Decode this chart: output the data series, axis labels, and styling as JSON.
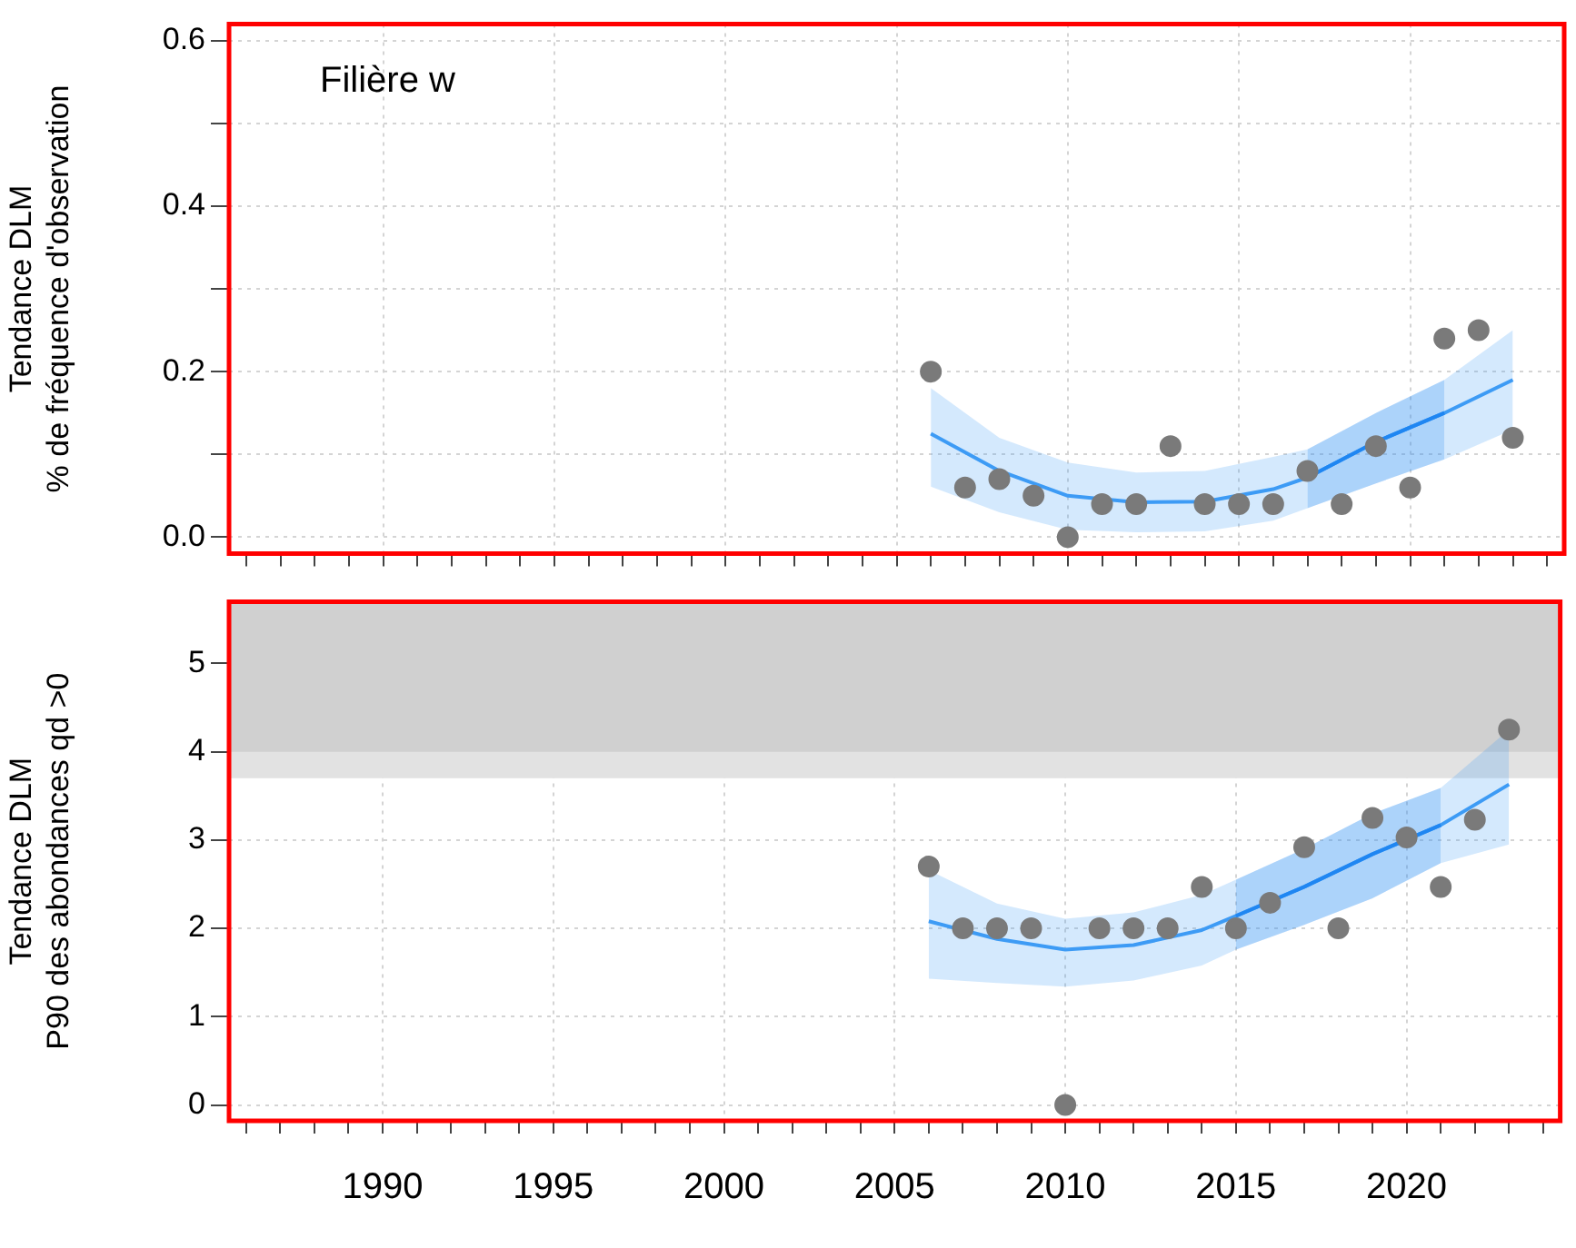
{
  "chart_data": [
    {
      "type": "scatter",
      "ylabel": "Tendance DLM\n% de fréquence d'observation",
      "annotations": [
        "Filière w"
      ],
      "xlim": [
        1985.5,
        2024.5
      ],
      "ylim": [
        -0.02,
        0.62
      ],
      "xticks": [
        {
          "value": 1986,
          "label": null
        },
        {
          "value": 1987,
          "label": null
        },
        {
          "value": 1988,
          "label": null
        },
        {
          "value": 1989,
          "label": null
        },
        {
          "value": 1990,
          "label": null
        },
        {
          "value": 1991,
          "label": null
        },
        {
          "value": 1992,
          "label": null
        },
        {
          "value": 1993,
          "label": null
        },
        {
          "value": 1994,
          "label": null
        },
        {
          "value": 1995,
          "label": null
        },
        {
          "value": 1996,
          "label": null
        },
        {
          "value": 1997,
          "label": null
        },
        {
          "value": 1998,
          "label": null
        },
        {
          "value": 1999,
          "label": null
        },
        {
          "value": 2000,
          "label": null
        },
        {
          "value": 2001,
          "label": null
        },
        {
          "value": 2002,
          "label": null
        },
        {
          "value": 2003,
          "label": null
        },
        {
          "value": 2004,
          "label": null
        },
        {
          "value": 2005,
          "label": null
        },
        {
          "value": 2006,
          "label": null
        },
        {
          "value": 2007,
          "label": null
        },
        {
          "value": 2008,
          "label": null
        },
        {
          "value": 2009,
          "label": null
        },
        {
          "value": 2010,
          "label": null
        },
        {
          "value": 2011,
          "label": null
        },
        {
          "value": 2012,
          "label": null
        },
        {
          "value": 2013,
          "label": null
        },
        {
          "value": 2014,
          "label": null
        },
        {
          "value": 2015,
          "label": null
        },
        {
          "value": 2016,
          "label": null
        },
        {
          "value": 2017,
          "label": null
        },
        {
          "value": 2018,
          "label": null
        },
        {
          "value": 2019,
          "label": null
        },
        {
          "value": 2020,
          "label": null
        },
        {
          "value": 2021,
          "label": null
        },
        {
          "value": 2022,
          "label": null
        },
        {
          "value": 2023,
          "label": null
        },
        {
          "value": 2024,
          "label": null
        }
      ],
      "yticks": [
        {
          "value": 0,
          "label": "0.0"
        },
        {
          "value": 0.1,
          "label": null
        },
        {
          "value": 0.2,
          "label": "0.2"
        },
        {
          "value": 0.3,
          "label": null
        },
        {
          "value": 0.4,
          "label": "0.4"
        },
        {
          "value": 0.5,
          "label": null
        },
        {
          "value": 0.6,
          "label": "0.6"
        }
      ],
      "grid": true,
      "legend": false,
      "tick_labels": "y",
      "series": [
        {
          "type": "line",
          "color": "#3d9bf5",
          "marker": "none",
          "x": [
            2006,
            2008,
            2010,
            2012,
            2014,
            2016,
            2017,
            2019,
            2021,
            2023
          ],
          "values": [
            0.125,
            0.08,
            0.05,
            0.042,
            0.043,
            0.058,
            0.072,
            0.115,
            0.15,
            0.19
          ],
          "lower": [
            0.061,
            0.03,
            0.009,
            0.006,
            0.007,
            0.02,
            0.035,
            0.065,
            0.094,
            0.13
          ],
          "upper": [
            0.18,
            0.12,
            0.09,
            0.078,
            0.08,
            0.097,
            0.106,
            0.15,
            0.19,
            0.25
          ]
        },
        {
          "type": "line",
          "color": "#1f86f2",
          "marker": "none",
          "x": [
            2017,
            2019,
            2021
          ],
          "values": [
            0.072,
            0.115,
            0.15
          ],
          "lower": [
            0.035,
            0.065,
            0.094
          ],
          "upper": [
            0.106,
            0.15,
            0.19
          ]
        },
        {
          "type": "scatter",
          "color": "#7a7a7a",
          "marker": "circle",
          "x": [
            2006,
            2007,
            2008,
            2009,
            2010,
            2011,
            2012,
            2013,
            2014,
            2015,
            2016,
            2017,
            2018,
            2019,
            2020,
            2021,
            2022,
            2023
          ],
          "values": [
            0.2,
            0.06,
            0.07,
            0.05,
            0,
            0.04,
            0.04,
            0.11,
            0.04,
            0.04,
            0.04,
            0.08,
            0.04,
            0.11,
            0.06,
            0.24,
            0.25,
            0.12
          ]
        }
      ]
    },
    {
      "type": "scatter",
      "ylabel": "Tendance DLM\nP90 des abondances qd >0",
      "xlim": [
        1985.5,
        2024.5
      ],
      "ylim": [
        -0.18,
        5.7
      ],
      "xticks": [
        {
          "value": 1986,
          "label": null
        },
        {
          "value": 1987,
          "label": null
        },
        {
          "value": 1988,
          "label": null
        },
        {
          "value": 1989,
          "label": null
        },
        {
          "value": 1990,
          "label": "1990"
        },
        {
          "value": 1991,
          "label": null
        },
        {
          "value": 1992,
          "label": null
        },
        {
          "value": 1993,
          "label": null
        },
        {
          "value": 1994,
          "label": null
        },
        {
          "value": 1995,
          "label": "1995"
        },
        {
          "value": 1996,
          "label": null
        },
        {
          "value": 1997,
          "label": null
        },
        {
          "value": 1998,
          "label": null
        },
        {
          "value": 1999,
          "label": null
        },
        {
          "value": 2000,
          "label": "2000"
        },
        {
          "value": 2001,
          "label": null
        },
        {
          "value": 2002,
          "label": null
        },
        {
          "value": 2003,
          "label": null
        },
        {
          "value": 2004,
          "label": null
        },
        {
          "value": 2005,
          "label": "2005"
        },
        {
          "value": 2006,
          "label": null
        },
        {
          "value": 2007,
          "label": null
        },
        {
          "value": 2008,
          "label": null
        },
        {
          "value": 2009,
          "label": null
        },
        {
          "value": 2010,
          "label": "2010"
        },
        {
          "value": 2011,
          "label": null
        },
        {
          "value": 2012,
          "label": null
        },
        {
          "value": 2013,
          "label": null
        },
        {
          "value": 2014,
          "label": null
        },
        {
          "value": 2015,
          "label": "2015"
        },
        {
          "value": 2016,
          "label": null
        },
        {
          "value": 2017,
          "label": null
        },
        {
          "value": 2018,
          "label": null
        },
        {
          "value": 2019,
          "label": null
        },
        {
          "value": 2020,
          "label": "2020"
        },
        {
          "value": 2021,
          "label": null
        },
        {
          "value": 2022,
          "label": null
        },
        {
          "value": 2023,
          "label": null
        },
        {
          "value": 2024,
          "label": null
        }
      ],
      "yticks": [
        0,
        1,
        2,
        3,
        4,
        5
      ],
      "grid": true,
      "legend": false,
      "bands": [
        {
          "axis": "y",
          "from": 3.7,
          "to": 5.7,
          "color": "#e2e2e2"
        },
        {
          "axis": "y",
          "from": 4,
          "to": 5.7,
          "color": "#d0d0d0"
        }
      ],
      "series": [
        {
          "type": "line",
          "color": "#3d9bf5",
          "marker": "none",
          "x": [
            2006,
            2008,
            2010,
            2012,
            2014,
            2015,
            2017,
            2019,
            2021,
            2023
          ],
          "values": [
            2.08,
            1.88,
            1.76,
            1.81,
            1.98,
            2.14,
            2.47,
            2.84,
            3.17,
            3.63
          ],
          "lower": [
            1.43,
            1.38,
            1.34,
            1.41,
            1.58,
            1.76,
            2.04,
            2.34,
            2.74,
            2.95
          ],
          "upper": [
            2.66,
            2.28,
            2.11,
            2.18,
            2.38,
            2.55,
            2.9,
            3.3,
            3.59,
            4.25
          ]
        },
        {
          "type": "line",
          "color": "#1f86f2",
          "marker": "none",
          "x": [
            2015,
            2017,
            2019,
            2021
          ],
          "values": [
            2.14,
            2.47,
            2.84,
            3.17
          ],
          "lower": [
            1.76,
            2.04,
            2.34,
            2.74
          ],
          "upper": [
            2.55,
            2.9,
            3.3,
            3.59
          ]
        },
        {
          "type": "scatter",
          "color": "#7a7a7a",
          "marker": "circle",
          "x": [
            2006,
            2007,
            2008,
            2009,
            2010,
            2011,
            2012,
            2013,
            2014,
            2015,
            2016,
            2017,
            2018,
            2019,
            2020,
            2021,
            2022,
            2023
          ],
          "values": [
            2.7,
            2,
            2,
            2,
            0,
            2,
            2,
            2,
            2.47,
            2,
            2.29,
            2.92,
            2,
            3.25,
            3.03,
            2.47,
            3.23,
            4.25
          ]
        }
      ]
    }
  ]
}
